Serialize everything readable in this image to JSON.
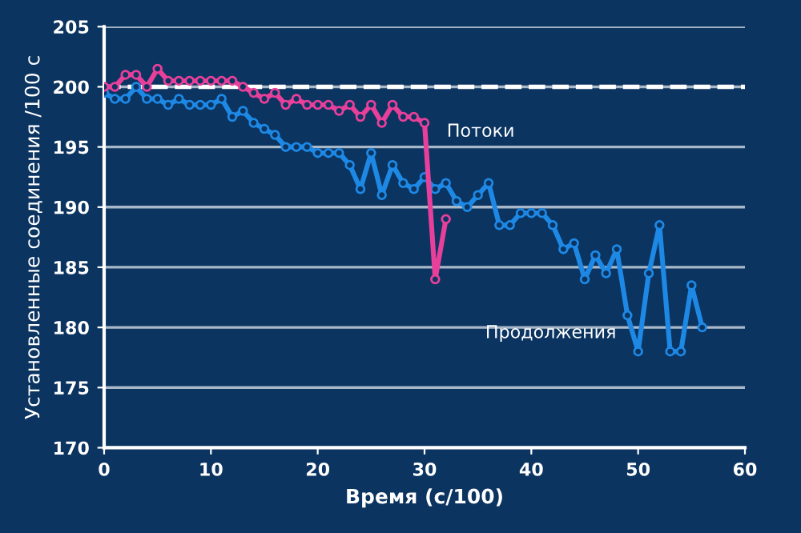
{
  "chart_data": {
    "type": "line",
    "xlabel": "Время (с/100)",
    "ylabel": "Установленные соединения /100 с",
    "xlim": [
      0,
      60
    ],
    "xticks": [
      0,
      10,
      20,
      30,
      40,
      50,
      60
    ],
    "ylim": [
      170,
      205
    ],
    "yticks": [
      170,
      175,
      180,
      185,
      190,
      195,
      200,
      205
    ],
    "grid": "y",
    "marker": "circle",
    "line_style": "solid",
    "legend": false,
    "series": [
      {
        "name": "Продолжения",
        "color": "#1e88e5",
        "x": [
          0,
          1,
          2,
          3,
          4,
          5,
          6,
          7,
          8,
          9,
          10,
          11,
          12,
          13,
          14,
          15,
          16,
          17,
          18,
          19,
          20,
          21,
          22,
          23,
          24,
          25,
          26,
          27,
          28,
          29,
          30,
          31,
          32,
          33,
          34,
          35,
          36,
          37,
          38,
          39,
          40,
          41,
          42,
          43,
          44,
          45,
          46,
          47,
          48,
          49,
          50,
          51,
          52,
          53,
          54,
          55,
          56
        ],
        "values": [
          199.5,
          199,
          199,
          200,
          199,
          199,
          198.5,
          199,
          198.5,
          198.5,
          198.5,
          199,
          197.5,
          198,
          197,
          196.5,
          196,
          195,
          195,
          195,
          194.5,
          194.5,
          194.5,
          193.5,
          191.5,
          194.5,
          191,
          193.5,
          192,
          191.5,
          192.5,
          191.5,
          192,
          190.5,
          190,
          191,
          192,
          188.5,
          188.5,
          189.5,
          189.5,
          189.5,
          188.5,
          186.5,
          187,
          184,
          186,
          184.5,
          186.5,
          181,
          178,
          184.5,
          188.5,
          178,
          178,
          183.5,
          180
        ]
      },
      {
        "name": "Потоки",
        "color": "#e8409a",
        "x": [
          0,
          1,
          2,
          3,
          4,
          5,
          6,
          7,
          8,
          9,
          10,
          11,
          12,
          13,
          14,
          15,
          16,
          17,
          18,
          19,
          20,
          21,
          22,
          23,
          24,
          25,
          26,
          27,
          28,
          29,
          30,
          31,
          32
        ],
        "values": [
          200,
          200,
          201,
          201,
          200,
          201.5,
          200.5,
          200.5,
          200.5,
          200.5,
          200.5,
          200.5,
          200.5,
          200,
          199.5,
          199,
          199.5,
          198.5,
          199,
          198.5,
          198.5,
          198.5,
          198,
          198.5,
          197.5,
          198.5,
          197,
          198.5,
          197.5,
          197.5,
          197,
          184,
          189
        ]
      }
    ],
    "ref_lines": [
      {
        "axis": "y",
        "value": 200,
        "color": "#ffffff",
        "line_style": "dashed"
      }
    ]
  }
}
